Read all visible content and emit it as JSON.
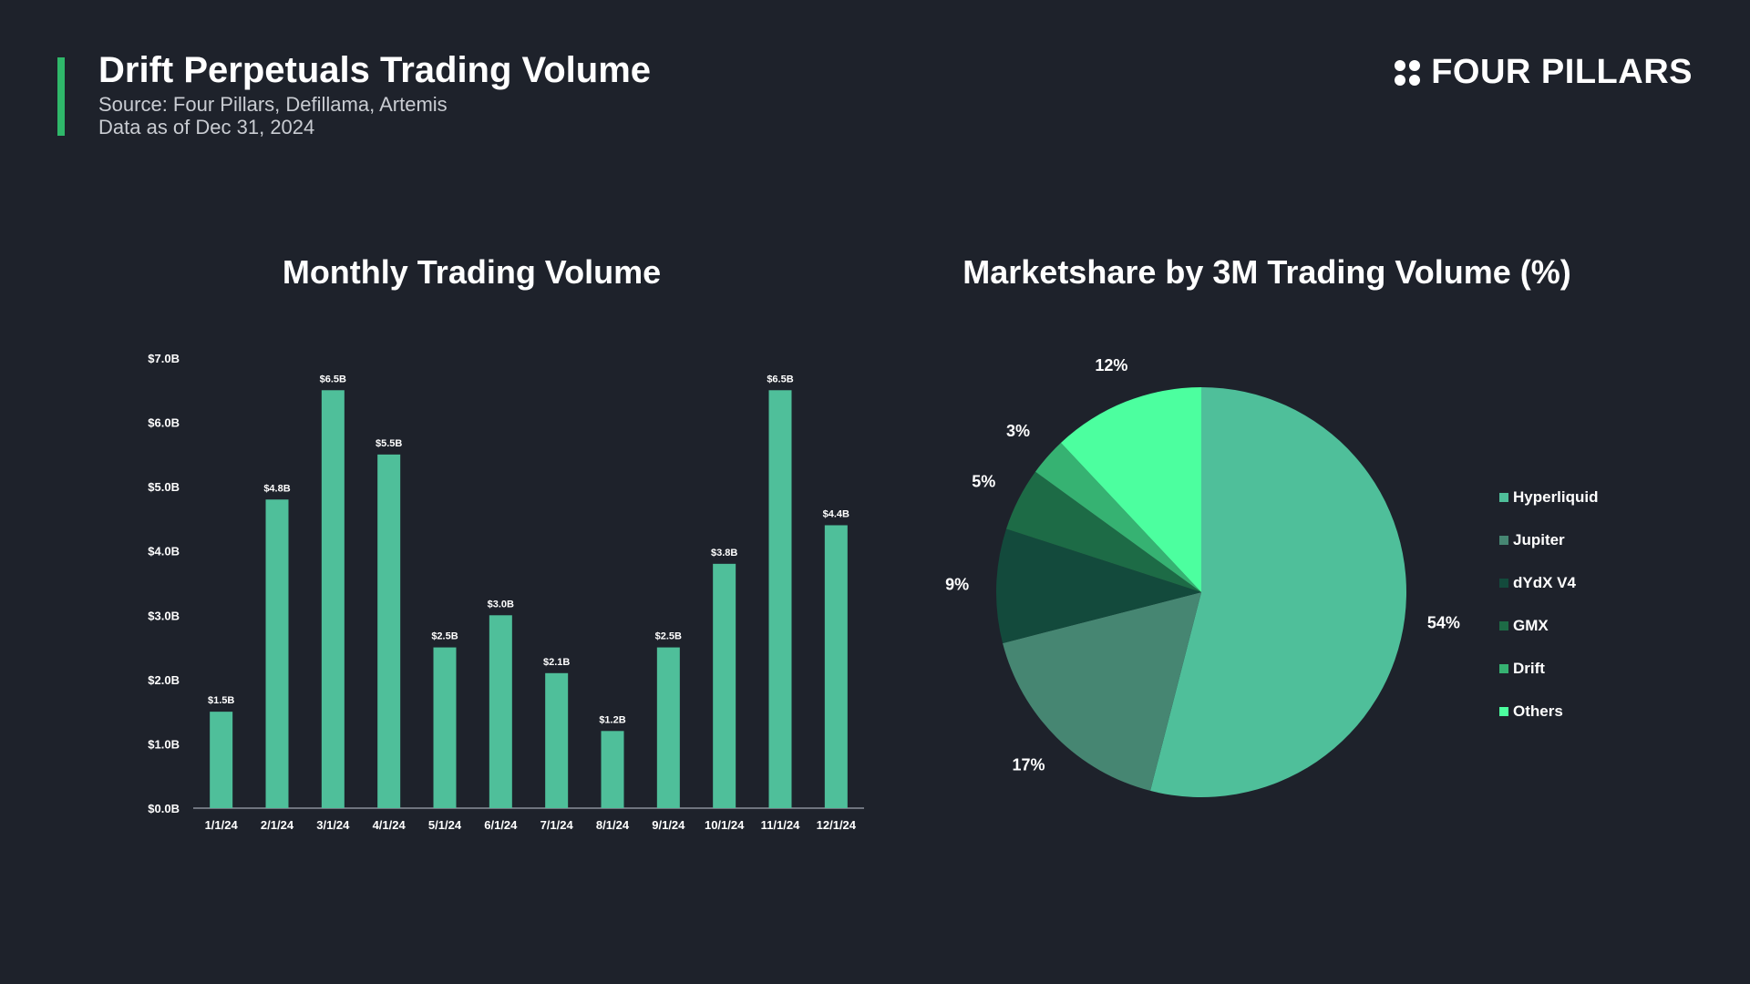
{
  "header": {
    "title": "Drift Perpetuals Trading Volume",
    "source": "Source: Four Pillars, Defillama, Artemis",
    "as_of": "Data as of Dec 31, 2024"
  },
  "logo": {
    "text": "FOUR PILLARS"
  },
  "colors": {
    "background": "#1e222b",
    "bar": "#4fbf9a",
    "accent": "#2fb86a"
  },
  "chart_data": [
    {
      "type": "bar",
      "title": "Monthly Trading Volume",
      "categories": [
        "1/1/24",
        "2/1/24",
        "3/1/24",
        "4/1/24",
        "5/1/24",
        "6/1/24",
        "7/1/24",
        "8/1/24",
        "9/1/24",
        "10/1/24",
        "11/1/24",
        "12/1/24"
      ],
      "values": [
        1.5,
        4.8,
        6.5,
        5.5,
        2.5,
        3.0,
        2.1,
        1.2,
        2.5,
        3.8,
        6.5,
        4.4
      ],
      "data_labels": [
        "$1.5B",
        "$4.8B",
        "$6.5B",
        "$5.5B",
        "$2.5B",
        "$3.0B",
        "$2.1B",
        "$1.2B",
        "$2.5B",
        "$3.8B",
        "$6.5B",
        "$4.4B"
      ],
      "y_ticks": [
        0,
        1,
        2,
        3,
        4,
        5,
        6,
        7
      ],
      "y_tick_labels": [
        "$0.0B",
        "$1.0B",
        "$2.0B",
        "$3.0B",
        "$4.0B",
        "$5.0B",
        "$6.0B",
        "$7.0B"
      ],
      "ylim": [
        0,
        7
      ],
      "grid": false
    },
    {
      "type": "pie",
      "title": "Marketshare by 3M Trading Volume (%)",
      "labels": [
        "Hyperliquid",
        "Jupiter",
        "dYdX V4",
        "GMX",
        "Drift",
        "Others"
      ],
      "values": [
        54,
        17,
        9,
        5,
        3,
        12
      ],
      "value_labels": [
        "54%",
        "17%",
        "9%",
        "5%",
        "3%",
        "12%"
      ],
      "colors": [
        "#4fbf9a",
        "#468672",
        "#134a3c",
        "#1d6b46",
        "#36b272",
        "#4cff9f"
      ],
      "legend_position": "right"
    }
  ]
}
